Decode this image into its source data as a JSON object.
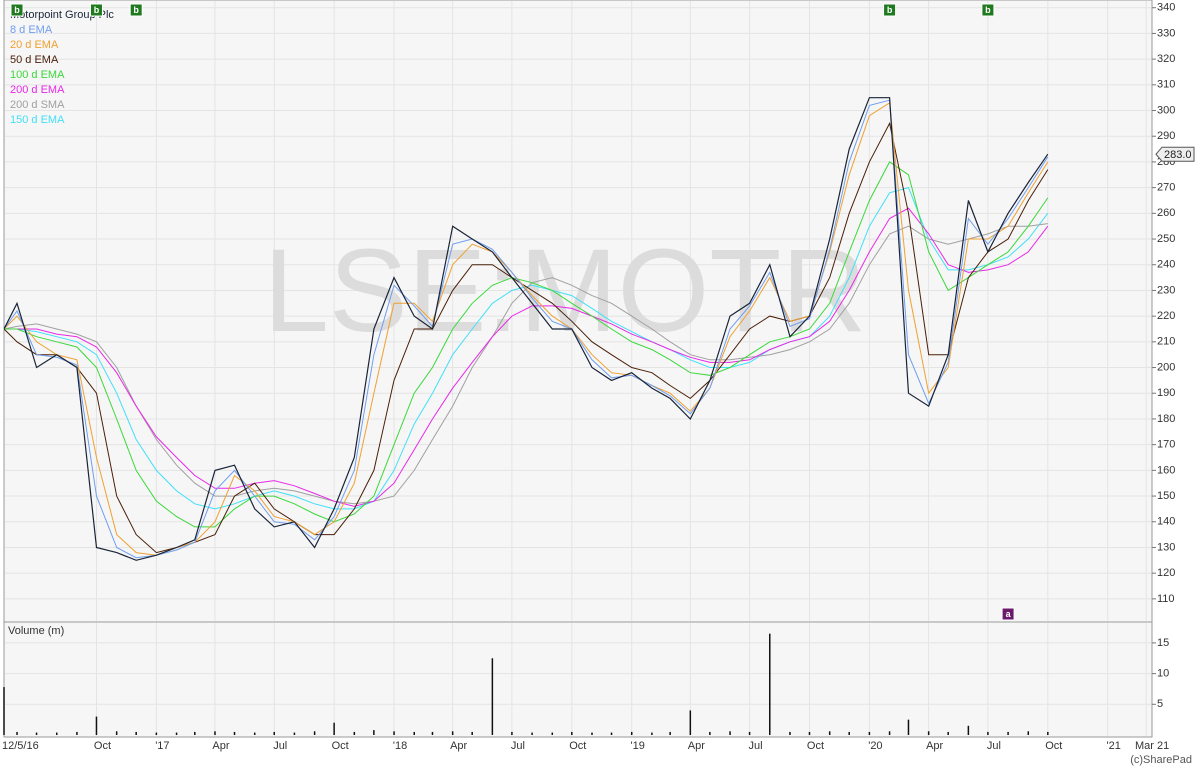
{
  "chart_data": [
    {
      "type": "line",
      "watermark": "LSE:MOTR",
      "x": [
        "2016-05-12",
        "2016-06",
        "2016-07",
        "2016-08",
        "2016-09",
        "2016-10",
        "2016-11",
        "2016-12",
        "2017-01",
        "2017-02",
        "2017-03",
        "2017-04",
        "2017-05",
        "2017-06",
        "2017-07",
        "2017-08",
        "2017-09",
        "2017-10",
        "2017-11",
        "2017-12",
        "2018-01",
        "2018-02",
        "2018-03",
        "2018-04",
        "2018-05",
        "2018-06",
        "2018-07",
        "2018-08",
        "2018-09",
        "2018-10",
        "2018-11",
        "2018-12",
        "2019-01",
        "2019-02",
        "2019-03",
        "2019-04",
        "2019-05",
        "2019-06",
        "2019-07",
        "2019-08",
        "2019-09",
        "2019-10",
        "2019-11",
        "2019-12",
        "2020-01",
        "2020-02",
        "2020-03",
        "2020-04",
        "2020-05",
        "2020-06",
        "2020-07",
        "2020-08",
        "2020-09",
        "2020-10"
      ],
      "series": [
        {
          "name": "Motorpoint Group Plc",
          "color": "#1a2438",
          "width": 1.2,
          "values": [
            215,
            225,
            200,
            205,
            200,
            130,
            128,
            125,
            127,
            130,
            133,
            160,
            162,
            145,
            138,
            140,
            130,
            145,
            165,
            215,
            235,
            220,
            215,
            255,
            250,
            245,
            235,
            225,
            215,
            215,
            200,
            195,
            198,
            192,
            188,
            180,
            195,
            220,
            225,
            240,
            212,
            220,
            250,
            285,
            305,
            305,
            190,
            185,
            205,
            265,
            245,
            260,
            272,
            283
          ]
        },
        {
          "name": "8 d EMA",
          "color": "#6f9ef0",
          "width": 1,
          "values": [
            215,
            222,
            205,
            204,
            201,
            150,
            130,
            126,
            127,
            129,
            132,
            152,
            160,
            150,
            140,
            139,
            133,
            142,
            160,
            205,
            232,
            224,
            216,
            248,
            250,
            246,
            237,
            227,
            218,
            215,
            203,
            196,
            197,
            193,
            189,
            182,
            192,
            215,
            224,
            237,
            216,
            219,
            246,
            280,
            302,
            304,
            205,
            186,
            202,
            258,
            248,
            258,
            270,
            282
          ]
        },
        {
          "name": "20 d EMA",
          "color": "#f0a030",
          "width": 1,
          "values": [
            215,
            220,
            210,
            205,
            203,
            165,
            135,
            128,
            127,
            130,
            132,
            140,
            158,
            152,
            142,
            140,
            135,
            140,
            155,
            190,
            225,
            225,
            218,
            240,
            248,
            245,
            237,
            228,
            220,
            215,
            205,
            198,
            197,
            193,
            190,
            183,
            192,
            212,
            222,
            235,
            218,
            220,
            245,
            275,
            298,
            303,
            230,
            190,
            200,
            250,
            250,
            255,
            268,
            280
          ]
        },
        {
          "name": "50 d EMA",
          "color": "#4a1e08",
          "width": 1,
          "values": [
            215,
            210,
            205,
            205,
            200,
            190,
            150,
            135,
            128,
            130,
            132,
            135,
            150,
            155,
            145,
            140,
            135,
            135,
            145,
            160,
            195,
            215,
            215,
            230,
            240,
            240,
            235,
            230,
            225,
            218,
            210,
            205,
            200,
            198,
            193,
            188,
            195,
            205,
            215,
            220,
            218,
            220,
            235,
            260,
            280,
            295,
            260,
            205,
            205,
            235,
            245,
            250,
            265,
            277
          ]
        },
        {
          "name": "100 d EMA",
          "color": "#3ad83a",
          "width": 1,
          "values": [
            215,
            215,
            212,
            210,
            208,
            200,
            180,
            160,
            148,
            142,
            138,
            138,
            145,
            150,
            150,
            147,
            143,
            140,
            143,
            150,
            170,
            190,
            200,
            215,
            225,
            232,
            235,
            233,
            230,
            225,
            220,
            215,
            210,
            207,
            203,
            198,
            197,
            200,
            205,
            210,
            212,
            215,
            225,
            245,
            265,
            280,
            275,
            245,
            230,
            235,
            240,
            245,
            255,
            266
          ]
        },
        {
          "name": "200 d EMA",
          "color": "#e828e8",
          "width": 1,
          "values": [
            215,
            215,
            215,
            213,
            212,
            208,
            198,
            185,
            173,
            165,
            158,
            153,
            153,
            155,
            156,
            154,
            151,
            148,
            146,
            148,
            155,
            168,
            180,
            192,
            202,
            212,
            220,
            224,
            224,
            223,
            220,
            217,
            213,
            210,
            207,
            204,
            202,
            202,
            203,
            207,
            210,
            212,
            218,
            230,
            245,
            258,
            262,
            252,
            240,
            237,
            238,
            240,
            245,
            255
          ]
        },
        {
          "name": "200 d SMA",
          "color": "#a0a0a0",
          "width": 1,
          "values": [
            215,
            216,
            217,
            215,
            213,
            210,
            200,
            185,
            172,
            162,
            155,
            150,
            150,
            152,
            153,
            152,
            150,
            148,
            147,
            148,
            150,
            160,
            172,
            185,
            200,
            212,
            225,
            233,
            235,
            232,
            228,
            225,
            220,
            215,
            210,
            205,
            203,
            203,
            204,
            205,
            207,
            210,
            215,
            225,
            240,
            252,
            255,
            250,
            248,
            250,
            252,
            255,
            255,
            256
          ]
        },
        {
          "name": "150 d EMA",
          "color": "#40e0f8",
          "width": 1,
          "values": [
            215,
            215,
            214,
            212,
            210,
            205,
            190,
            172,
            160,
            152,
            147,
            145,
            147,
            150,
            152,
            150,
            147,
            145,
            145,
            148,
            160,
            178,
            190,
            205,
            215,
            225,
            230,
            232,
            230,
            228,
            223,
            218,
            214,
            210,
            207,
            203,
            200,
            200,
            202,
            207,
            210,
            212,
            220,
            235,
            255,
            268,
            270,
            250,
            238,
            238,
            240,
            243,
            250,
            260
          ]
        }
      ],
      "price_tag": {
        "value": 283.0,
        "label": "283.0"
      },
      "flags": [
        {
          "x": "2016-06",
          "label": "b",
          "color": "#1f7a1f",
          "place": "top"
        },
        {
          "x": "2016-10",
          "label": "b",
          "color": "#1f7a1f",
          "place": "top"
        },
        {
          "x": "2016-12",
          "label": "b",
          "color": "#1f7a1f",
          "place": "top"
        },
        {
          "x": "2020-02",
          "label": "b",
          "color": "#1f7a1f",
          "place": "top"
        },
        {
          "x": "2020-07",
          "label": "b",
          "color": "#1f7a1f",
          "place": "top"
        },
        {
          "x": "2020-08",
          "label": "a",
          "color": "#6b1a6b",
          "place": "bottom"
        }
      ],
      "xlim": [
        "2016-05-12",
        "2021-03-10"
      ],
      "xticks": [
        {
          "value": "2016-05-12",
          "label": "12/5/16"
        },
        {
          "value": "2016-10",
          "label": "Oct"
        },
        {
          "value": "2017-01",
          "label": "'17"
        },
        {
          "value": "2017-04",
          "label": "Apr"
        },
        {
          "value": "2017-07",
          "label": "Jul"
        },
        {
          "value": "2017-10",
          "label": "Oct"
        },
        {
          "value": "2018-01",
          "label": "'18"
        },
        {
          "value": "2018-04",
          "label": "Apr"
        },
        {
          "value": "2018-07",
          "label": "Jul"
        },
        {
          "value": "2018-10",
          "label": "Oct"
        },
        {
          "value": "2019-01",
          "label": "'19"
        },
        {
          "value": "2019-04",
          "label": "Apr"
        },
        {
          "value": "2019-07",
          "label": "Jul"
        },
        {
          "value": "2019-10",
          "label": "Oct"
        },
        {
          "value": "2020-01",
          "label": "'20"
        },
        {
          "value": "2020-04",
          "label": "Apr"
        },
        {
          "value": "2020-07",
          "label": "Jul"
        },
        {
          "value": "2020-10",
          "label": "Oct"
        },
        {
          "value": "2021-01",
          "label": "'21"
        },
        {
          "value": "2021-03",
          "label": "Mar 21"
        }
      ],
      "ylim": [
        101,
        343
      ],
      "yticks": [
        110,
        120,
        130,
        140,
        150,
        160,
        170,
        180,
        190,
        200,
        210,
        220,
        230,
        240,
        250,
        260,
        270,
        280,
        290,
        300,
        310,
        320,
        330,
        340
      ],
      "grid": true
    },
    {
      "type": "bar",
      "title": "Volume (m)",
      "color": "#111111",
      "x": [
        "2016-05-12",
        "2016-06",
        "2016-07",
        "2016-08",
        "2016-09",
        "2016-10",
        "2016-11",
        "2016-12",
        "2017-01",
        "2017-02",
        "2017-03",
        "2017-04",
        "2017-05",
        "2017-06",
        "2017-07",
        "2017-08",
        "2017-09",
        "2017-10",
        "2017-11",
        "2017-12",
        "2018-01",
        "2018-02",
        "2018-03",
        "2018-04",
        "2018-05",
        "2018-06",
        "2018-07",
        "2018-08",
        "2018-09",
        "2018-10",
        "2018-11",
        "2018-12",
        "2019-01",
        "2019-02",
        "2019-03",
        "2019-04",
        "2019-05",
        "2019-06",
        "2019-07",
        "2019-08",
        "2019-09",
        "2019-10",
        "2019-11",
        "2019-12",
        "2020-01",
        "2020-02",
        "2020-03",
        "2020-04",
        "2020-05",
        "2020-06",
        "2020-07",
        "2020-08",
        "2020-09",
        "2020-10"
      ],
      "values": [
        7.8,
        0.5,
        0.4,
        0.4,
        0.5,
        3.0,
        0.6,
        0.5,
        0.4,
        0.4,
        0.5,
        0.6,
        0.5,
        0.4,
        0.5,
        0.4,
        0.6,
        2.0,
        0.5,
        0.8,
        0.6,
        0.5,
        0.5,
        0.6,
        0.5,
        12.5,
        0.5,
        0.4,
        0.4,
        0.5,
        0.4,
        0.4,
        0.5,
        0.4,
        0.5,
        4.0,
        0.5,
        0.6,
        0.5,
        16.5,
        0.5,
        0.5,
        0.6,
        0.5,
        0.5,
        0.6,
        2.5,
        0.6,
        0.5,
        1.5,
        0.5,
        0.5,
        0.6,
        0.5
      ],
      "ylim": [
        0,
        18.4
      ],
      "yticks": [
        5,
        10,
        15
      ],
      "grid": true,
      "credit": "(c)SharePad"
    }
  ]
}
